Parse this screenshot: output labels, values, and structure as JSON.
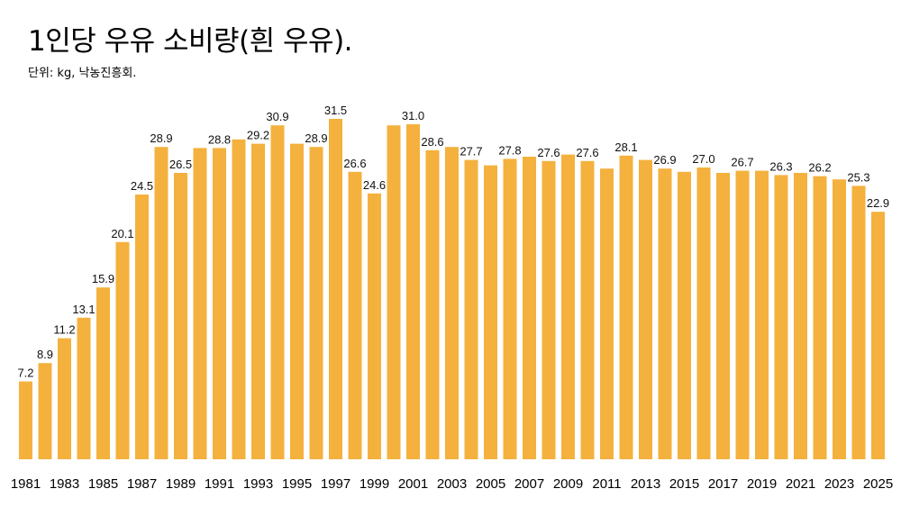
{
  "chart_data": {
    "type": "bar",
    "title": "1인당 우유 소비량(흰 우유).",
    "subtitle": "단위: kg, 낙농진흥회.",
    "xlabel": "",
    "ylabel": "",
    "ylim": [
      0,
      33
    ],
    "grid": false,
    "legend": false,
    "bar_color": "#F4B13E",
    "categories": [
      "1981",
      "1982",
      "1983",
      "1984",
      "1985",
      "1986",
      "1987",
      "1988",
      "1989",
      "1990",
      "1991",
      "1992",
      "1993",
      "1994",
      "1995",
      "1996",
      "1997",
      "1998",
      "1999",
      "2000",
      "2001",
      "2002",
      "2003",
      "2004",
      "2005",
      "2006",
      "2007",
      "2008",
      "2009",
      "2010",
      "2011",
      "2012",
      "2013",
      "2014",
      "2015",
      "2016",
      "2017",
      "2018",
      "2019",
      "2020",
      "2021",
      "2022",
      "2023",
      "2024",
      "2025"
    ],
    "values": [
      7.2,
      8.9,
      11.2,
      13.1,
      15.9,
      20.1,
      24.5,
      28.9,
      26.5,
      28.8,
      28.8,
      29.6,
      29.2,
      30.9,
      29.2,
      28.9,
      31.5,
      26.6,
      24.6,
      30.9,
      31.0,
      28.6,
      28.9,
      27.7,
      27.2,
      27.8,
      28.0,
      27.6,
      28.2,
      27.6,
      26.9,
      28.1,
      27.7,
      26.9,
      26.6,
      27.0,
      26.5,
      26.7,
      26.7,
      26.3,
      26.5,
      26.2,
      25.9,
      25.3,
      22.9
    ],
    "data_labels": [
      {
        "index": 0,
        "text": "7.2"
      },
      {
        "index": 1,
        "text": "8.9"
      },
      {
        "index": 2,
        "text": "11.2"
      },
      {
        "index": 3,
        "text": "13.1"
      },
      {
        "index": 4,
        "text": "15.9"
      },
      {
        "index": 5,
        "text": "20.1"
      },
      {
        "index": 6,
        "text": "24.5"
      },
      {
        "index": 7,
        "text": "28.9"
      },
      {
        "index": 8,
        "text": "26.5"
      },
      {
        "index": 10,
        "text": "28.8"
      },
      {
        "index": 12,
        "text": "29.2"
      },
      {
        "index": 13,
        "text": "30.9"
      },
      {
        "index": 15,
        "text": "28.9"
      },
      {
        "index": 16,
        "text": "31.5"
      },
      {
        "index": 17,
        "text": "26.6"
      },
      {
        "index": 18,
        "text": "24.6"
      },
      {
        "index": 20,
        "text": "31.0"
      },
      {
        "index": 21,
        "text": "28.6"
      },
      {
        "index": 23,
        "text": "27.7"
      },
      {
        "index": 25,
        "text": "27.8"
      },
      {
        "index": 27,
        "text": "27.6"
      },
      {
        "index": 29,
        "text": "27.6"
      },
      {
        "index": 31,
        "text": "28.1"
      },
      {
        "index": 33,
        "text": "26.9"
      },
      {
        "index": 35,
        "text": "27.0"
      },
      {
        "index": 37,
        "text": "26.7"
      },
      {
        "index": 39,
        "text": "26.3"
      },
      {
        "index": 41,
        "text": "26.2"
      },
      {
        "index": 43,
        "text": "25.3"
      },
      {
        "index": 44,
        "text": "22.9"
      }
    ],
    "x_tick_labels": [
      "1981",
      "1983",
      "1985",
      "1987",
      "1989",
      "1991",
      "1993",
      "1995",
      "1997",
      "1999",
      "2001",
      "2003",
      "2005",
      "2007",
      "2009",
      "2011",
      "2013",
      "2015",
      "2017",
      "2019",
      "2021",
      "2023",
      "2025"
    ]
  }
}
